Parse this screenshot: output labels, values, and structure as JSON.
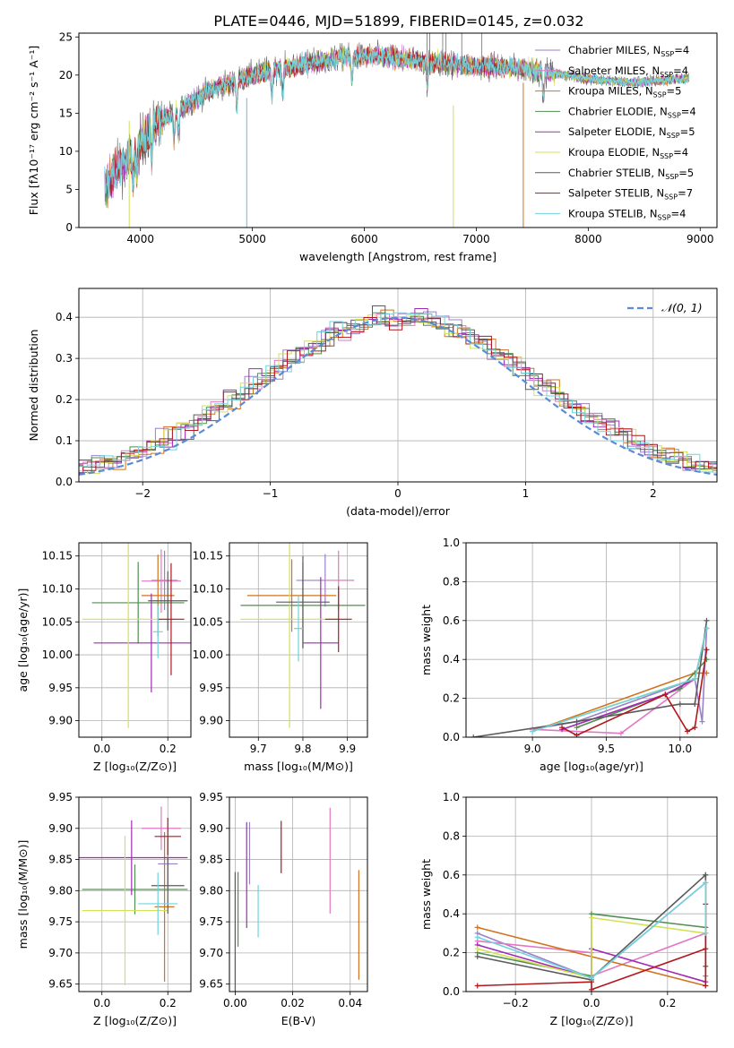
{
  "figure_title": "PLATE=0446, MJD=51899, FIBERID=0145, z=0.032",
  "colors": [
    "#9b80c8",
    "#e377c2",
    "#d0731f",
    "#4f8f4f",
    "#a22ab5",
    "#d4e057",
    "#5b5b5b",
    "#b1181d",
    "#70d3dc"
  ],
  "chart_data": [
    {
      "id": "spectrum",
      "type": "line",
      "title": "PLATE=0446, MJD=51899, FIBERID=0145, z=0.032",
      "xlabel": "wavelength [Angstrom, rest frame]",
      "ylabel": "Flux [fλ10⁻¹⁷ erg cm⁻² s⁻¹ A⁻¹]",
      "xlim": [
        3450,
        9150
      ],
      "ylim": [
        0,
        25.5
      ],
      "xticks": [
        4000,
        5000,
        6000,
        7000,
        8000,
        9000
      ],
      "yticks": [
        0,
        5,
        10,
        15,
        20,
        25
      ],
      "grid": false,
      "legend_loc": "right",
      "legend": [
        "Chabrier MILES, N_SSP=4",
        "Salpeter MILES, N_SSP=4",
        "Kroupa MILES, N_SSP=5",
        "Chabrier ELODIE, N_SSP=4",
        "Salpeter ELODIE, N_SSP=5",
        "Kroupa ELODIE, N_SSP=4",
        "Chabrier STELIB, N_SSP=5",
        "Salpeter STELIB, N_SSP=7",
        "Kroupa STELIB, N_SSP=4"
      ],
      "legend_nssp": [
        "4",
        "4",
        "5",
        "4",
        "5",
        "4",
        "5",
        "7",
        "4"
      ],
      "legend_names": [
        "Chabrier MILES",
        "Salpeter MILES",
        "Kroupa MILES",
        "Chabrier ELODIE",
        "Salpeter ELODIE",
        "Kroupa ELODIE",
        "Chabrier STELIB",
        "Salpeter STELIB",
        "Kroupa STELIB"
      ],
      "continuum_x": [
        3680,
        3750,
        3850,
        3950,
        4050,
        4150,
        4300,
        4500,
        4700,
        4900,
        5100,
        5300,
        5500,
        5800,
        6100,
        6400,
        6700,
        7000,
        7300,
        7600,
        8000,
        8400,
        8800
      ],
      "continuum_y": [
        5,
        7,
        8.5,
        10,
        12,
        14,
        15,
        17,
        18.5,
        19.5,
        20.5,
        21,
        21.5,
        22.3,
        22.5,
        22,
        21.5,
        21.2,
        21,
        20.5,
        19.5,
        19,
        19.5
      ]
    },
    {
      "id": "residuals",
      "type": "histogram",
      "xlabel": "(data-model)/error",
      "ylabel": "Normed distribution",
      "xlim": [
        -2.5,
        2.5
      ],
      "ylim": [
        0,
        0.47
      ],
      "xticks": [
        -2,
        -1,
        0,
        1,
        2
      ],
      "yticks": [
        0.0,
        0.1,
        0.2,
        0.3,
        0.4
      ],
      "grid": true,
      "reference_label": "𝒩(0, 1)",
      "reference_color": "#5b8bd5",
      "legend_loc": "top-right"
    },
    {
      "id": "age-vs-Z",
      "type": "errorbar",
      "xlabel": "Z [log₁₀(Z/Z⊙)]",
      "ylabel": "age  [log₁₀(age/yr)]",
      "xlim": [
        -0.07,
        0.27
      ],
      "ylim": [
        9.875,
        10.17
      ],
      "xticks": [
        0.0,
        0.2
      ],
      "yticks": [
        9.9,
        9.95,
        10.0,
        10.05,
        10.1,
        10.15
      ],
      "grid": true,
      "points": [
        {
          "x": 0.19,
          "y": 10.113,
          "xerr": 0.04,
          "yerr": 0.045
        },
        {
          "x": 0.18,
          "y": 10.112,
          "xerr": 0.06,
          "yerr": 0.048
        },
        {
          "x": 0.17,
          "y": 10.09,
          "xerr": 0.05,
          "yerr": 0.062
        },
        {
          "x": 0.11,
          "y": 10.079,
          "xerr": 0.14,
          "yerr": 0.062
        },
        {
          "x": 0.15,
          "y": 10.018,
          "xerr": 0.175,
          "yerr": 0.075
        },
        {
          "x": 0.08,
          "y": 10.054,
          "xerr": 0.14,
          "yerr": 0.165
        },
        {
          "x": 0.2,
          "y": 10.082,
          "xerr": 0.06,
          "yerr": 0.045
        },
        {
          "x": 0.21,
          "y": 10.054,
          "xerr": 0.04,
          "yerr": 0.085
        },
        {
          "x": 0.17,
          "y": 10.035,
          "xerr": 0.015,
          "yerr": 0.04
        }
      ]
    },
    {
      "id": "age-vs-mass",
      "type": "errorbar",
      "xlabel": "mass [log₁₀(M/M⊙)]",
      "ylabel": "",
      "xlim": [
        9.635,
        9.945
      ],
      "ylim": [
        9.875,
        10.17
      ],
      "xticks": [
        9.7,
        9.8,
        9.9
      ],
      "yticks": [
        9.9,
        9.95,
        10.0,
        10.05,
        10.1,
        10.15
      ],
      "grid": true,
      "points": [
        {
          "x": 9.85,
          "y": 10.113,
          "xerr": 0.065,
          "yerr": 0.04
        },
        {
          "x": 9.88,
          "y": 10.113,
          "xerr": 0.03,
          "yerr": 0.045
        },
        {
          "x": 9.775,
          "y": 10.09,
          "xerr": 0.1,
          "yerr": 0.055
        },
        {
          "x": 9.8,
          "y": 10.075,
          "xerr": 0.14,
          "yerr": 0.065
        },
        {
          "x": 9.84,
          "y": 10.018,
          "xerr": 0.04,
          "yerr": 0.1
        },
        {
          "x": 9.77,
          "y": 10.054,
          "xerr": 0.11,
          "yerr": 0.165
        },
        {
          "x": 9.8,
          "y": 10.08,
          "xerr": 0.06,
          "yerr": 0.07
        },
        {
          "x": 9.88,
          "y": 10.054,
          "xerr": 0.03,
          "yerr": 0.05
        },
        {
          "x": 9.79,
          "y": 10.04,
          "xerr": 0.01,
          "yerr": 0.05
        }
      ]
    },
    {
      "id": "weight-vs-age",
      "type": "line",
      "xlabel": "age  [log₁₀(age/yr)]",
      "ylabel": "mass weight",
      "xlim": [
        8.55,
        10.25
      ],
      "ylim": [
        0.0,
        1.0
      ],
      "xticks": [
        9.0,
        9.5,
        10.0
      ],
      "yticks": [
        0.0,
        0.2,
        0.4,
        0.6,
        0.8,
        1.0
      ],
      "grid": true,
      "series": [
        {
          "x": [
            9.0,
            9.3,
            10.1,
            10.15,
            10.18
          ],
          "y": [
            0.04,
            0.08,
            0.3,
            0.08,
            0.56
          ]
        },
        {
          "x": [
            9.0,
            9.6,
            10.1,
            10.18
          ],
          "y": [
            0.04,
            0.02,
            0.3,
            0.56
          ]
        },
        {
          "x": [
            9.0,
            10.1,
            10.18
          ],
          "y": [
            0.03,
            0.33,
            0.33
          ]
        },
        {
          "x": [
            9.3,
            10.0,
            10.18
          ],
          "y": [
            0.05,
            0.25,
            0.4
          ]
        },
        {
          "x": [
            9.2,
            9.9,
            10.1,
            10.18
          ],
          "y": [
            0.04,
            0.22,
            0.3,
            0.56
          ]
        },
        {
          "x": [
            9.0,
            10.1,
            10.18
          ],
          "y": [
            0.03,
            0.3,
            0.56
          ]
        },
        {
          "x": [
            8.6,
            9.3,
            10.0,
            10.1,
            10.18
          ],
          "y": [
            0.0,
            0.08,
            0.17,
            0.17,
            0.6
          ]
        },
        {
          "x": [
            9.2,
            9.3,
            9.9,
            10.05,
            10.1,
            10.18
          ],
          "y": [
            0.05,
            0.01,
            0.22,
            0.03,
            0.05,
            0.45
          ]
        },
        {
          "x": [
            9.0,
            10.1,
            10.18
          ],
          "y": [
            0.03,
            0.3,
            0.56
          ]
        }
      ]
    },
    {
      "id": "mass-vs-Z",
      "type": "errorbar",
      "xlabel": "Z [log₁₀(Z/Z⊙)]",
      "ylabel": "mass [log₁₀(M/M⊙)]",
      "xlim": [
        -0.07,
        0.27
      ],
      "ylim": [
        9.638,
        9.95
      ],
      "xticks": [
        0.0,
        0.2
      ],
      "yticks": [
        9.65,
        9.7,
        9.75,
        9.8,
        9.85,
        9.9,
        9.95
      ],
      "grid": true,
      "points": [
        {
          "x": 0.2,
          "y": 9.843,
          "xerr": 0.03,
          "yerr": 0.04
        },
        {
          "x": 0.18,
          "y": 9.9,
          "xerr": 0.06,
          "yerr": 0.035
        },
        {
          "x": 0.19,
          "y": 9.774,
          "xerr": 0.03,
          "yerr": 0.12
        },
        {
          "x": 0.1,
          "y": 9.802,
          "xerr": 0.16,
          "yerr": 0.04
        },
        {
          "x": 0.09,
          "y": 9.853,
          "xerr": 0.17,
          "yerr": 0.06
        },
        {
          "x": 0.07,
          "y": 9.768,
          "xerr": 0.13,
          "yerr": 0.12
        },
        {
          "x": 0.2,
          "y": 9.808,
          "xerr": 0.05,
          "yerr": 0.045
        },
        {
          "x": 0.2,
          "y": 9.887,
          "xerr": 0.04,
          "yerr": 0.03
        },
        {
          "x": 0.17,
          "y": 9.779,
          "xerr": 0.06,
          "yerr": 0.05
        }
      ]
    },
    {
      "id": "mass-vs-ebv",
      "type": "errorbar",
      "xlabel": "E(B-V)",
      "ylabel": "",
      "xlim": [
        -0.002,
        0.046
      ],
      "ylim": [
        9.638,
        9.95
      ],
      "xticks": [
        0.0,
        0.02,
        0.04
      ],
      "yticks": [
        9.65,
        9.7,
        9.75,
        9.8,
        9.85,
        9.9,
        9.95
      ],
      "grid": true,
      "points": [
        {
          "x": 0.005,
          "y": 9.86,
          "xerr": 0,
          "yerr": 0.05
        },
        {
          "x": 0.033,
          "y": 9.848,
          "xerr": 0,
          "yerr": 0.085
        },
        {
          "x": 0.043,
          "y": 9.745,
          "xerr": 0,
          "yerr": 0.088
        },
        {
          "x": 0.001,
          "y": 9.77,
          "xerr": 0,
          "yerr": 0.06
        },
        {
          "x": 0.004,
          "y": 9.825,
          "xerr": 0,
          "yerr": 0.085
        },
        {
          "x": 0.0,
          "y": 9.738,
          "xerr": 0,
          "yerr": 0.085
        },
        {
          "x": 0.0,
          "y": 9.73,
          "xerr": 0,
          "yerr": 0.1
        },
        {
          "x": 0.016,
          "y": 9.87,
          "xerr": 0,
          "yerr": 0.042
        },
        {
          "x": 0.008,
          "y": 9.767,
          "xerr": 0,
          "yerr": 0.042
        }
      ]
    },
    {
      "id": "weight-vs-Z",
      "type": "line",
      "xlabel": "Z [log₁₀(Z/Z⊙)]",
      "ylabel": "mass weight",
      "xlim": [
        -0.33,
        0.33
      ],
      "ylim": [
        0.0,
        1.0
      ],
      "xticks": [
        -0.2,
        0.0,
        0.2
      ],
      "yticks": [
        0.0,
        0.2,
        0.4,
        0.6,
        0.8,
        1.0
      ],
      "grid": true,
      "series": [
        {
          "x": [
            -0.3,
            0.0,
            0.3,
            0.3
          ],
          "y": [
            0.3,
            0.07,
            0.56,
            0.08
          ]
        },
        {
          "x": [
            -0.3,
            0.0,
            0.0,
            0.3
          ],
          "y": [
            0.26,
            0.2,
            0.08,
            0.3
          ]
        },
        {
          "x": [
            -0.3,
            0.3,
            0.3
          ],
          "y": [
            0.33,
            0.03,
            0.33
          ]
        },
        {
          "x": [
            -0.3,
            0.0,
            0.0,
            0.3,
            0.3
          ],
          "y": [
            0.2,
            0.08,
            0.4,
            0.33,
            0.6
          ]
        },
        {
          "x": [
            -0.3,
            0.0,
            0.0,
            0.3
          ],
          "y": [
            0.24,
            0.07,
            0.22,
            0.05
          ]
        },
        {
          "x": [
            -0.3,
            0.0,
            0.0,
            0.3
          ],
          "y": [
            0.22,
            0.07,
            0.38,
            0.3
          ]
        },
        {
          "x": [
            -0.3,
            0.0,
            0.0,
            0.3,
            0.3
          ],
          "y": [
            0.18,
            0.06,
            0.07,
            0.6,
            0.13
          ]
        },
        {
          "x": [
            -0.3,
            0.0,
            0.0,
            0.3,
            0.3,
            0.3
          ],
          "y": [
            0.03,
            0.05,
            0.01,
            0.22,
            0.03,
            0.45
          ]
        },
        {
          "x": [
            -0.3,
            0.0,
            0.3,
            0.3
          ],
          "y": [
            0.28,
            0.07,
            0.56,
            0.3
          ]
        }
      ]
    }
  ]
}
